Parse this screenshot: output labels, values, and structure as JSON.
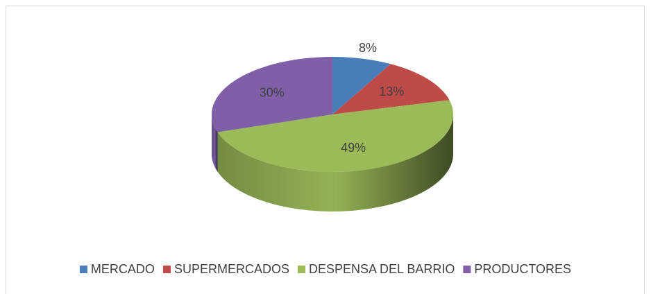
{
  "chart_data": {
    "type": "pie3d",
    "categories": [
      "MERCADO",
      "SUPERMERCADOS",
      "DESPENSA DEL BARRIO",
      "PRODUCTORES"
    ],
    "values": [
      8,
      13,
      49,
      30
    ],
    "value_labels": [
      "8%",
      "13%",
      "49%",
      "30%"
    ],
    "colors": [
      "#4a7ebb",
      "#be4b48",
      "#9bbb59",
      "#7f60a8"
    ],
    "legend": "bottom"
  }
}
